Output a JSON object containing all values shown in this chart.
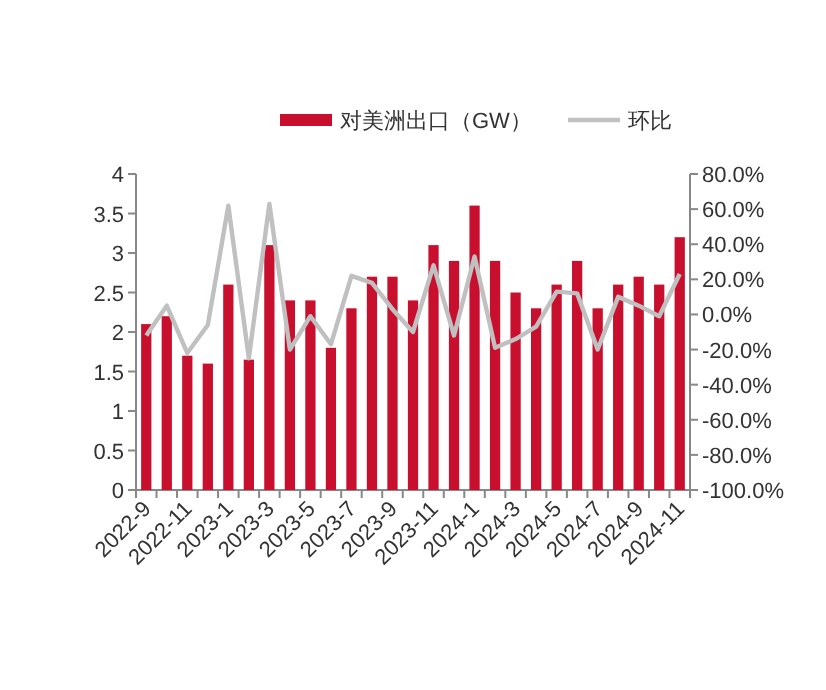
{
  "chart_data": {
    "type": "bar",
    "categories": [
      "2022-9",
      null,
      "2022-11",
      null,
      "2023-1",
      null,
      "2023-3",
      null,
      "2023-5",
      null,
      "2023-7",
      null,
      "2023-9",
      null,
      "2023-11",
      null,
      "2024-1",
      null,
      "2024-3",
      null,
      "2024-5",
      null,
      "2024-7",
      null,
      "2024-9",
      null,
      "2024-11"
    ],
    "series": [
      {
        "name": "对美洲出口（GW）",
        "color": "#c8102e",
        "values": [
          2.1,
          2.2,
          1.7,
          1.6,
          2.6,
          1.65,
          3.1,
          2.4,
          2.4,
          1.8,
          2.3,
          2.7,
          2.7,
          2.4,
          3.1,
          2.9,
          3.6,
          2.9,
          2.5,
          2.3,
          2.6,
          2.9,
          2.3,
          2.6,
          2.7,
          2.6,
          3.2
        ]
      },
      {
        "name": "环比",
        "type": "line",
        "axis": "y2",
        "color": "#c0c0c0",
        "values": [
          -12,
          5,
          -22,
          -6,
          62,
          -25,
          63,
          -20,
          -1,
          -17,
          22,
          18,
          3,
          -10,
          28,
          -12,
          33,
          -19,
          -14,
          -7,
          13,
          12,
          -20,
          10,
          5,
          -1,
          23
        ]
      }
    ],
    "ylim": [
      0,
      4
    ],
    "yticks": [
      0,
      0.5,
      1,
      1.5,
      2,
      2.5,
      3,
      3.5,
      4
    ],
    "y2lim": [
      -100,
      80
    ],
    "y2ticks": [
      {
        "value": -100,
        "label": "-100.0%"
      },
      {
        "value": -80,
        "label": "-80.0%"
      },
      {
        "value": -60,
        "label": "-60.0%"
      },
      {
        "value": -40,
        "label": "-40.0%"
      },
      {
        "value": -20,
        "label": "-20.0%"
      },
      {
        "value": 0,
        "label": "0.0%"
      },
      {
        "value": 20,
        "label": "20.0%"
      },
      {
        "value": 40,
        "label": "40.0%"
      },
      {
        "value": 60,
        "label": "60.0%"
      },
      {
        "value": 80,
        "label": "80.0%"
      }
    ],
    "legend": "top",
    "grid": false
  }
}
